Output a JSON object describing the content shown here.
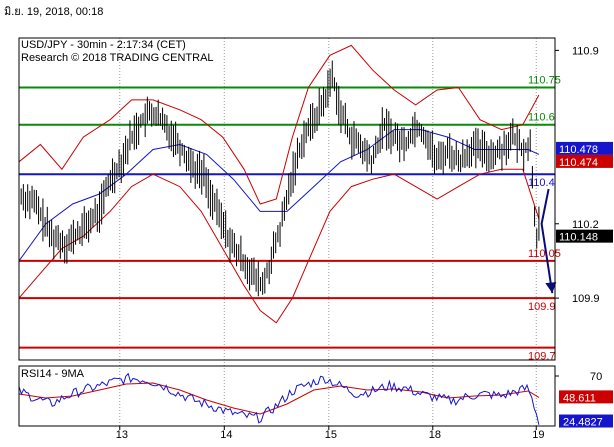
{
  "header": {
    "timestamp": "มิ.ย. 19, 2018, 00:18"
  },
  "chart_data": {
    "type": "candlestick",
    "title": "USD/JPY - 30min - 2:17:34 (CET)",
    "subtitle": "Research © 2018 TRADING CENTRAL",
    "ylim": [
      109.65,
      110.95
    ],
    "y_ticks": [
      {
        "value": 110.9,
        "label": "110.9"
      },
      {
        "value": 110.2,
        "label": "110.2"
      },
      {
        "value": 109.9,
        "label": "109.9"
      }
    ],
    "x_ticks": [
      {
        "pos": 0.188,
        "label": "13"
      },
      {
        "pos": 0.383,
        "label": "14"
      },
      {
        "pos": 0.578,
        "label": "15"
      },
      {
        "pos": 0.772,
        "label": "18"
      },
      {
        "pos": 0.965,
        "label": "19"
      }
    ],
    "levels": [
      {
        "value": 110.75,
        "label": "110.75",
        "color": "#0a8a0a"
      },
      {
        "value": 110.6,
        "label": "110.6",
        "color": "#0a8a0a"
      },
      {
        "value": 110.4,
        "label": "110.4",
        "color": "#1515cc"
      },
      {
        "value": 110.05,
        "label": "110.05",
        "color": "#cc0000"
      },
      {
        "value": 109.9,
        "label": "109.9",
        "color": "#cc0000"
      },
      {
        "value": 109.7,
        "label": "109.7",
        "color": "#cc0000"
      }
    ],
    "price_tags": [
      {
        "value": 110.478,
        "label": "110.478",
        "bg": "#1515cc",
        "fg": "#ffffff"
      },
      {
        "value": 110.474,
        "label": "110.474",
        "bg": "#cc0000",
        "fg": "#ffffff"
      },
      {
        "value": 110.148,
        "label": "110.148",
        "bg": "#000000",
        "fg": "#ffffff"
      }
    ],
    "price_path": [
      [
        0.0,
        110.32
      ],
      [
        0.03,
        110.28
      ],
      [
        0.06,
        110.15
      ],
      [
        0.09,
        110.12
      ],
      [
        0.12,
        110.18
      ],
      [
        0.15,
        110.25
      ],
      [
        0.17,
        110.38
      ],
      [
        0.19,
        110.45
      ],
      [
        0.21,
        110.55
      ],
      [
        0.23,
        110.62
      ],
      [
        0.25,
        110.65
      ],
      [
        0.27,
        110.6
      ],
      [
        0.29,
        110.55
      ],
      [
        0.31,
        110.48
      ],
      [
        0.33,
        110.42
      ],
      [
        0.345,
        110.4
      ],
      [
        0.36,
        110.3
      ],
      [
        0.38,
        110.2
      ],
      [
        0.4,
        110.1
      ],
      [
        0.42,
        110.05
      ],
      [
        0.44,
        109.98
      ],
      [
        0.455,
        109.95
      ],
      [
        0.47,
        110.05
      ],
      [
        0.49,
        110.2
      ],
      [
        0.51,
        110.4
      ],
      [
        0.53,
        110.55
      ],
      [
        0.55,
        110.62
      ],
      [
        0.57,
        110.7
      ],
      [
        0.585,
        110.8
      ],
      [
        0.6,
        110.65
      ],
      [
        0.62,
        110.55
      ],
      [
        0.64,
        110.5
      ],
      [
        0.66,
        110.45
      ],
      [
        0.68,
        110.6
      ],
      [
        0.7,
        110.55
      ],
      [
        0.72,
        110.52
      ],
      [
        0.74,
        110.6
      ],
      [
        0.76,
        110.55
      ],
      [
        0.78,
        110.45
      ],
      [
        0.8,
        110.5
      ],
      [
        0.82,
        110.45
      ],
      [
        0.84,
        110.5
      ],
      [
        0.86,
        110.5
      ],
      [
        0.88,
        110.48
      ],
      [
        0.9,
        110.5
      ],
      [
        0.92,
        110.55
      ],
      [
        0.94,
        110.5
      ],
      [
        0.955,
        110.52
      ],
      [
        0.96,
        110.3
      ],
      [
        0.965,
        110.15
      ],
      [
        0.97,
        110.2
      ]
    ],
    "sma_path": [
      [
        0.0,
        110.05
      ],
      [
        0.05,
        110.2
      ],
      [
        0.1,
        110.28
      ],
      [
        0.15,
        110.32
      ],
      [
        0.2,
        110.4
      ],
      [
        0.25,
        110.5
      ],
      [
        0.3,
        110.52
      ],
      [
        0.35,
        110.48
      ],
      [
        0.4,
        110.38
      ],
      [
        0.45,
        110.25
      ],
      [
        0.5,
        110.25
      ],
      [
        0.55,
        110.35
      ],
      [
        0.6,
        110.45
      ],
      [
        0.65,
        110.5
      ],
      [
        0.7,
        110.58
      ],
      [
        0.75,
        110.58
      ],
      [
        0.8,
        110.55
      ],
      [
        0.85,
        110.5
      ],
      [
        0.9,
        110.5
      ],
      [
        0.95,
        110.5
      ],
      [
        0.97,
        110.48
      ]
    ],
    "band_upper": [
      [
        0.0,
        110.45
      ],
      [
        0.04,
        110.52
      ],
      [
        0.08,
        110.42
      ],
      [
        0.12,
        110.55
      ],
      [
        0.17,
        110.62
      ],
      [
        0.21,
        110.7
      ],
      [
        0.25,
        110.7
      ],
      [
        0.3,
        110.66
      ],
      [
        0.34,
        110.62
      ],
      [
        0.38,
        110.55
      ],
      [
        0.42,
        110.42
      ],
      [
        0.45,
        110.28
      ],
      [
        0.48,
        110.3
      ],
      [
        0.51,
        110.55
      ],
      [
        0.54,
        110.75
      ],
      [
        0.58,
        110.88
      ],
      [
        0.62,
        110.92
      ],
      [
        0.66,
        110.82
      ],
      [
        0.7,
        110.74
      ],
      [
        0.74,
        110.68
      ],
      [
        0.78,
        110.74
      ],
      [
        0.82,
        110.75
      ],
      [
        0.86,
        110.62
      ],
      [
        0.9,
        110.58
      ],
      [
        0.94,
        110.6
      ],
      [
        0.97,
        110.72
      ]
    ],
    "band_lower": [
      [
        0.0,
        109.9
      ],
      [
        0.04,
        110.0
      ],
      [
        0.08,
        110.1
      ],
      [
        0.12,
        110.15
      ],
      [
        0.17,
        110.25
      ],
      [
        0.21,
        110.35
      ],
      [
        0.25,
        110.4
      ],
      [
        0.3,
        110.35
      ],
      [
        0.34,
        110.25
      ],
      [
        0.38,
        110.1
      ],
      [
        0.42,
        109.95
      ],
      [
        0.45,
        109.85
      ],
      [
        0.48,
        109.8
      ],
      [
        0.51,
        109.9
      ],
      [
        0.54,
        110.05
      ],
      [
        0.58,
        110.25
      ],
      [
        0.62,
        110.35
      ],
      [
        0.66,
        110.38
      ],
      [
        0.7,
        110.4
      ],
      [
        0.74,
        110.35
      ],
      [
        0.78,
        110.3
      ],
      [
        0.82,
        110.35
      ],
      [
        0.86,
        110.4
      ],
      [
        0.9,
        110.42
      ],
      [
        0.94,
        110.42
      ],
      [
        0.97,
        110.22
      ]
    ],
    "forecast_arrow": [
      [
        0.988,
        110.34
      ],
      [
        0.975,
        110.2
      ],
      [
        0.995,
        109.92
      ]
    ],
    "rsi": {
      "title": "RSI14 - 9MA",
      "ylim": [
        20,
        80
      ],
      "tick": {
        "value": 70,
        "label": "70"
      },
      "tags": [
        {
          "value": 48.611,
          "label": "48.611",
          "bg": "#cc0000",
          "fg": "#ffffff"
        },
        {
          "value": 24.4827,
          "label": "24.4827",
          "bg": "#1515cc",
          "fg": "#ffffff"
        }
      ],
      "rsi_path": [
        [
          0.0,
          55
        ],
        [
          0.03,
          48
        ],
        [
          0.06,
          42
        ],
        [
          0.09,
          50
        ],
        [
          0.12,
          56
        ],
        [
          0.15,
          60
        ],
        [
          0.18,
          65
        ],
        [
          0.21,
          68
        ],
        [
          0.24,
          66
        ],
        [
          0.27,
          60
        ],
        [
          0.3,
          52
        ],
        [
          0.33,
          45
        ],
        [
          0.36,
          40
        ],
        [
          0.39,
          34
        ],
        [
          0.42,
          30
        ],
        [
          0.45,
          28
        ],
        [
          0.48,
          40
        ],
        [
          0.51,
          55
        ],
        [
          0.54,
          62
        ],
        [
          0.57,
          68
        ],
        [
          0.6,
          60
        ],
        [
          0.63,
          52
        ],
        [
          0.66,
          55
        ],
        [
          0.69,
          60
        ],
        [
          0.72,
          58
        ],
        [
          0.75,
          52
        ],
        [
          0.78,
          48
        ],
        [
          0.81,
          45
        ],
        [
          0.84,
          50
        ],
        [
          0.87,
          52
        ],
        [
          0.9,
          50
        ],
        [
          0.93,
          55
        ],
        [
          0.95,
          58
        ],
        [
          0.96,
          42
        ],
        [
          0.97,
          24.5
        ]
      ],
      "ma_path": [
        [
          0.0,
          52
        ],
        [
          0.05,
          48
        ],
        [
          0.1,
          50
        ],
        [
          0.15,
          56
        ],
        [
          0.2,
          62
        ],
        [
          0.25,
          63
        ],
        [
          0.3,
          56
        ],
        [
          0.35,
          46
        ],
        [
          0.4,
          38
        ],
        [
          0.45,
          32
        ],
        [
          0.5,
          42
        ],
        [
          0.55,
          56
        ],
        [
          0.6,
          60
        ],
        [
          0.65,
          56
        ],
        [
          0.7,
          57
        ],
        [
          0.75,
          54
        ],
        [
          0.8,
          48
        ],
        [
          0.85,
          50
        ],
        [
          0.9,
          51
        ],
        [
          0.95,
          55
        ],
        [
          0.97,
          48.6
        ]
      ]
    }
  }
}
